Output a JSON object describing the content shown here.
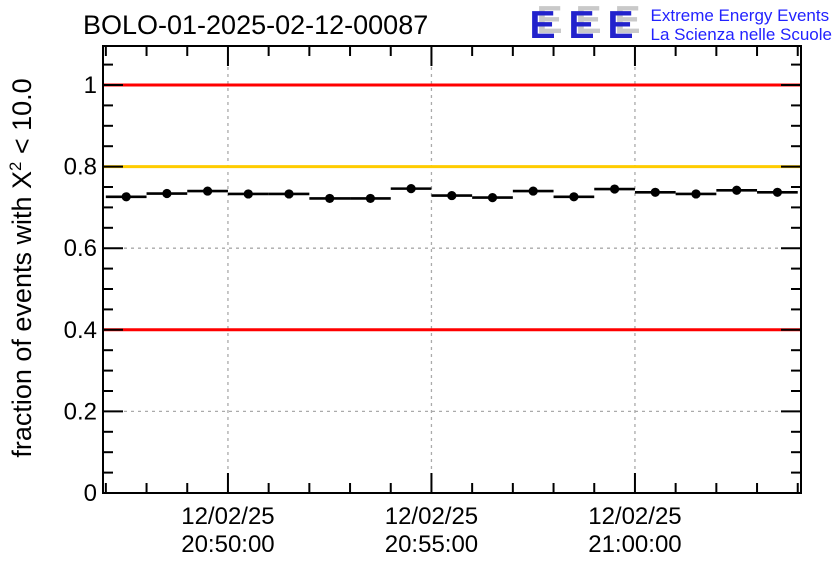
{
  "colors": {
    "red_limit": "#ff0000",
    "gold_limit": "#ffcc00",
    "marker": "#000000",
    "grid": "#aaaaaa",
    "frame": "#000000",
    "logo_blue": "#2222cc",
    "logo_text_blue": "#2222ff",
    "logo_shadow": "#c9c9c9"
  },
  "logo": {
    "acronym": "EEE",
    "line1": "Extreme Energy Events",
    "line2": "La Scienza nelle Scuole"
  },
  "chart_data": {
    "type": "line",
    "title": "BOLO-01-2025-02-12-00087",
    "ylabel": {
      "pre": "fraction of events with X",
      "sup": "2",
      "post": " < 10.0"
    },
    "xlabel": "",
    "ylim": [
      0,
      1.0956
    ],
    "y_major_ticks": [
      {
        "v": 0,
        "label": "0"
      },
      {
        "v": 0.2,
        "label": "0.2"
      },
      {
        "v": 0.4,
        "label": "0.4"
      },
      {
        "v": 0.6,
        "label": "0.6"
      },
      {
        "v": 0.8,
        "label": "0.8"
      },
      {
        "v": 1.0,
        "label": "1"
      }
    ],
    "y_minor_step": 0.05,
    "x_axis_is_time": true,
    "x_reference": "minutes relative to 20:50:00",
    "xlim_minutes": [
      -3.07,
      14.08
    ],
    "x_major_ticks": [
      {
        "t": 0,
        "date": "12/02/25",
        "time": "20:50:00"
      },
      {
        "t": 5,
        "date": "12/02/25",
        "time": "20:55:00"
      },
      {
        "t": 10,
        "date": "12/02/25",
        "time": "21:00:00"
      }
    ],
    "x_minor_step_minutes": 1,
    "grid": true,
    "legend": "none",
    "reference_lines": [
      {
        "v": 1.0,
        "color": "#ff0000"
      },
      {
        "v": 0.8,
        "color": "#ffcc00"
      },
      {
        "v": 0.4,
        "color": "#ff0000"
      }
    ],
    "series": [
      {
        "name": "fraction of events with X2 < 10.0",
        "marker": "filled-circle",
        "color": "#000000",
        "x_halfwidth_minutes": 0.5,
        "points": [
          {
            "time": "20:47:30",
            "t": -2.5,
            "value": 0.726
          },
          {
            "time": "20:48:30",
            "t": -1.5,
            "value": 0.734
          },
          {
            "time": "20:49:30",
            "t": -0.5,
            "value": 0.74
          },
          {
            "time": "20:50:30",
            "t": 0.5,
            "value": 0.733
          },
          {
            "time": "20:51:30",
            "t": 1.5,
            "value": 0.733
          },
          {
            "time": "20:52:30",
            "t": 2.5,
            "value": 0.722
          },
          {
            "time": "20:53:30",
            "t": 3.5,
            "value": 0.722
          },
          {
            "time": "20:54:30",
            "t": 4.5,
            "value": 0.746
          },
          {
            "time": "20:55:30",
            "t": 5.5,
            "value": 0.729
          },
          {
            "time": "20:56:30",
            "t": 6.5,
            "value": 0.724
          },
          {
            "time": "20:57:30",
            "t": 7.5,
            "value": 0.74
          },
          {
            "time": "20:58:30",
            "t": 8.5,
            "value": 0.726
          },
          {
            "time": "20:59:30",
            "t": 9.5,
            "value": 0.745
          },
          {
            "time": "21:00:30",
            "t": 10.5,
            "value": 0.737
          },
          {
            "time": "21:01:30",
            "t": 11.5,
            "value": 0.733
          },
          {
            "time": "21:02:30",
            "t": 12.5,
            "value": 0.742
          },
          {
            "time": "21:03:30",
            "t": 13.5,
            "value": 0.737
          }
        ]
      }
    ]
  }
}
